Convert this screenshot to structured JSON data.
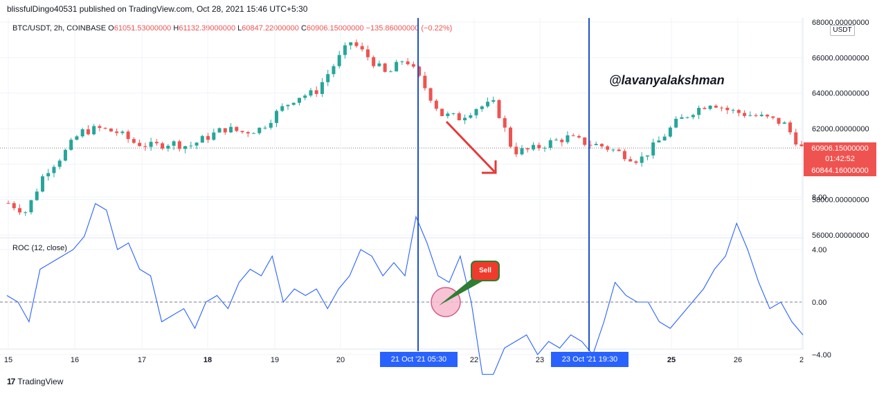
{
  "header": {
    "publish_line": "blissfulDingo40531 published on TradingView.com, Oct 28, 2021 15:46 UTC+5:30"
  },
  "legend": {
    "symbol": "BTC/USDT, 2h, COINBASE",
    "open_label": "O",
    "open_value": "61051.53000000",
    "high_label": "H",
    "high_value": "61132.39000000",
    "low_label": "L",
    "low_value": "60847.22000000",
    "close_label": "C",
    "close_value": "60906.15000000",
    "change": "−135.86000000 (−0.22%)"
  },
  "currency_badge": "USDT",
  "watermark": "@lavanyalakshman",
  "price_axis": {
    "ticks": [
      "68000.00000000",
      "66000.00000000",
      "64000.00000000",
      "62000.00000000",
      "58000.00000000",
      "56000.00000000"
    ],
    "last_price": "60906.15000000",
    "countdown": "01:42:52",
    "other_price": "60844.16000000"
  },
  "roc_panel": {
    "title": "ROC (12, close)",
    "ticks": [
      "8.00",
      "4.00",
      "0.00",
      "−4.00"
    ]
  },
  "time_axis": {
    "ticks": [
      "15",
      "16",
      "17",
      "18",
      "19",
      "20",
      "22",
      "23",
      "25",
      "26",
      "2"
    ],
    "marker_1": "21 Oct '21   05:30",
    "marker_2": "23 Oct '21   19:30"
  },
  "sell_label": "Sell",
  "footer": {
    "brand": "TradingView",
    "brand_mark": "17"
  },
  "colors": {
    "up": "#26a69a",
    "down": "#ef5350",
    "roc_line": "#2962ff",
    "vline": "#1e50c8",
    "arrow": "#e53935"
  },
  "chart_data": [
    {
      "type": "candlestick",
      "title": "BTC/USDT, 2h, COINBASE",
      "ylim": [
        56000,
        68000
      ],
      "x": [
        "15",
        "16",
        "17",
        "18",
        "19",
        "20",
        "21 Oct '21 05:30",
        "22",
        "23",
        "23 Oct '21 19:30",
        "25",
        "26"
      ],
      "approx_close_path": [
        57800,
        57300,
        59500,
        60500,
        61800,
        62000,
        61800,
        61200,
        61000,
        61200,
        61000,
        61500,
        62000,
        61800,
        62000,
        63000,
        63800,
        64000,
        65500,
        66900,
        66000,
        65000,
        66000,
        64500,
        62800,
        62600,
        63200,
        63400,
        60700,
        60800,
        61200,
        61500,
        61200,
        61000,
        60600,
        60200,
        61200,
        62300,
        63000,
        63500,
        63000,
        62800,
        62600,
        62300,
        60906
      ]
    },
    {
      "type": "line",
      "title": "ROC (12, close)",
      "ylim": [
        -6,
        9
      ],
      "approx_values": [
        0.5,
        0,
        -1.5,
        2.5,
        3,
        3.5,
        4,
        5,
        7.5,
        7,
        4,
        4.5,
        2.5,
        2,
        -1.5,
        -1,
        -0.5,
        -2,
        0,
        0.5,
        -0.5,
        1.5,
        2.5,
        2,
        3.5,
        0,
        1,
        0.5,
        1,
        -0.5,
        1,
        2,
        4,
        3.5,
        2,
        3,
        2,
        6.5,
        4.5,
        2,
        1.5,
        3.5,
        0,
        -5.5,
        -5.5,
        -3.5,
        -3,
        -2.5,
        -4,
        -3,
        -3.5,
        -2.5,
        -3,
        -4,
        -1.5,
        1.5,
        0.5,
        0,
        0,
        -1.5,
        -2,
        -1,
        0,
        1,
        2.5,
        3.5,
        6,
        4,
        1.5,
        -0.5,
        0,
        -1.5,
        -2.5
      ]
    }
  ]
}
